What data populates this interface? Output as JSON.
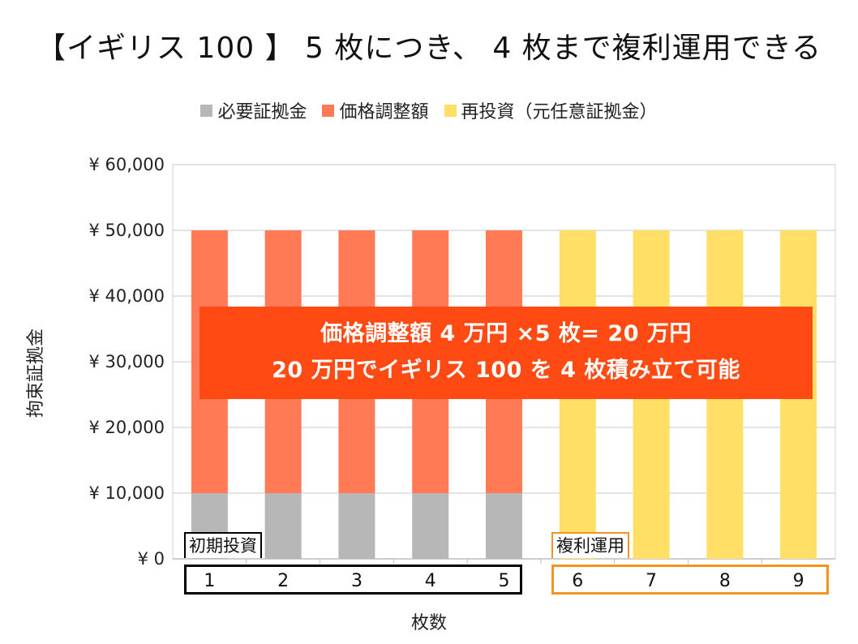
{
  "title": "【イギリス 100 】 5 枚につき、 4 枚まで複利運用できる",
  "legend": [
    {
      "label": "必要証拠金",
      "color": "#b7b7b7"
    },
    {
      "label": "価格調整額",
      "color": "#ff7a55"
    },
    {
      "label": "再投資（元任意証拠金）",
      "color": "#ffdf66"
    }
  ],
  "axis": {
    "ylabel": "拘束証拠金",
    "xlabel": "枚数"
  },
  "annotation": {
    "line1": "価格調整額 4 万円 ×5 枚= 20 万円",
    "line2": "20 万円でイギリス 100 を 4 枚積み立て可能"
  },
  "groups": {
    "initial": "初期投資",
    "compound": "複利運用"
  },
  "chart_data": {
    "type": "bar",
    "stacked": true,
    "title": "【イギリス 100 】 5 枚につき、 4 枚まで複利運用できる",
    "xlabel": "枚数",
    "ylabel": "拘束証拠金",
    "categories": [
      "1",
      "2",
      "3",
      "4",
      "5",
      "6",
      "7",
      "8",
      "9"
    ],
    "ylim": [
      0,
      60000
    ],
    "yticks": [
      0,
      10000,
      20000,
      30000,
      40000,
      50000,
      60000
    ],
    "ytick_labels": [
      "¥ 0",
      "¥ 10,000",
      "¥ 20,000",
      "¥ 30,000",
      "¥ 40,000",
      "¥ 50,000",
      "¥ 60,000"
    ],
    "grid": true,
    "legend_position": "top",
    "series": [
      {
        "name": "必要証拠金",
        "color": "#b7b7b7",
        "values": [
          10000,
          10000,
          10000,
          10000,
          10000,
          0,
          0,
          0,
          0
        ]
      },
      {
        "name": "価格調整額",
        "color": "#ff7a55",
        "values": [
          40000,
          40000,
          40000,
          40000,
          40000,
          0,
          0,
          0,
          0
        ]
      },
      {
        "name": "再投資（元任意証拠金）",
        "color": "#ffdf66",
        "values": [
          0,
          0,
          0,
          0,
          0,
          50000,
          50000,
          50000,
          50000
        ]
      }
    ]
  }
}
